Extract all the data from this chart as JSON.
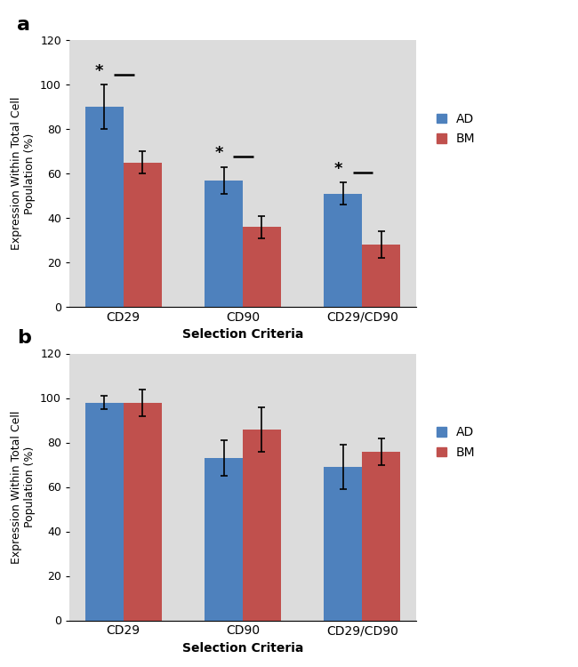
{
  "panel_a": {
    "categories": [
      "CD29",
      "CD90",
      "CD29/CD90"
    ],
    "AD_values": [
      90,
      57,
      51
    ],
    "BM_values": [
      65,
      36,
      28
    ],
    "AD_errors": [
      10,
      6,
      5
    ],
    "BM_errors": [
      5,
      5,
      6
    ],
    "significance": [
      true,
      true,
      true
    ],
    "ylabel": "Expression Within Total Cell\nPopulation (%)",
    "xlabel": "Selection Criteria",
    "ylim": [
      0,
      120
    ],
    "yticks": [
      0,
      20,
      40,
      60,
      80,
      100,
      120
    ],
    "label": "a"
  },
  "panel_b": {
    "categories": [
      "CD29",
      "CD90",
      "CD29/CD90"
    ],
    "AD_values": [
      98,
      73,
      69
    ],
    "BM_values": [
      98,
      86,
      76
    ],
    "AD_errors": [
      3,
      8,
      10
    ],
    "BM_errors": [
      6,
      10,
      6
    ],
    "significance": [
      false,
      false,
      false
    ],
    "ylabel": "Expression Within Total Cell\nPopulation (%)",
    "xlabel": "Selection Criteria",
    "ylim": [
      0,
      120
    ],
    "yticks": [
      0,
      20,
      40,
      60,
      80,
      100,
      120
    ],
    "label": "b"
  },
  "AD_color": "#4E81BD",
  "BM_color": "#C0504D",
  "bg_color": "#DCDCDC",
  "bar_width": 0.32,
  "legend_labels": [
    "AD",
    "BM"
  ],
  "fig_width": 6.5,
  "fig_height": 7.5
}
